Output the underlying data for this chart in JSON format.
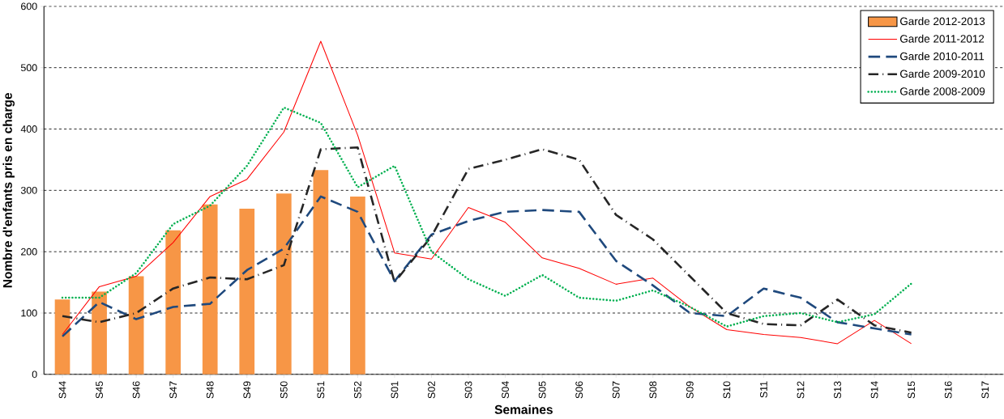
{
  "chart_data": {
    "type": "line",
    "xlabel": "Semaines",
    "ylabel": "Nombre d'enfants  pris en charge",
    "categories": [
      "S44",
      "S45",
      "S46",
      "S47",
      "S48",
      "S49",
      "S50",
      "S51",
      "S52",
      "S01",
      "S02",
      "S03",
      "S04",
      "S05",
      "S06",
      "S07",
      "S08",
      "S09",
      "S10",
      "S11",
      "S12",
      "S13",
      "S14",
      "S15",
      "S16",
      "S17"
    ],
    "series": [
      {
        "name": "Garde 2012-2013",
        "type": "bar",
        "color": "#f79646",
        "values": [
          122,
          135,
          160,
          235,
          277,
          270,
          295,
          333,
          290,
          null,
          null,
          null,
          null,
          null,
          null,
          null,
          null,
          null,
          null,
          null,
          null,
          null,
          null,
          null,
          null,
          null
        ]
      },
      {
        "name": "Garde 2011-2012",
        "color": "#ff0000",
        "line_style": "solid",
        "values": [
          65,
          143,
          160,
          215,
          290,
          318,
          395,
          543,
          390,
          198,
          188,
          272,
          248,
          190,
          173,
          147,
          157,
          110,
          73,
          65,
          60,
          50,
          88,
          50,
          null,
          null
        ]
      },
      {
        "name": "Garde 2010-2011",
        "color": "#1f497d",
        "line_style": "dashed",
        "values": [
          62,
          118,
          90,
          110,
          115,
          170,
          205,
          290,
          265,
          152,
          228,
          250,
          265,
          268,
          265,
          185,
          145,
          100,
          95,
          140,
          125,
          85,
          75,
          65,
          null,
          null
        ]
      },
      {
        "name": "Garde 2009-2010",
        "color": "#262626",
        "line_style": "dashdot",
        "values": [
          95,
          85,
          100,
          140,
          158,
          155,
          178,
          367,
          370,
          150,
          225,
          335,
          350,
          367,
          350,
          260,
          220,
          160,
          100,
          82,
          80,
          122,
          80,
          68,
          null,
          null
        ]
      },
      {
        "name": "Garde 2008-2009",
        "color": "#00b050",
        "line_style": "dotted",
        "values": [
          125,
          125,
          165,
          245,
          275,
          340,
          435,
          410,
          305,
          340,
          200,
          155,
          128,
          162,
          125,
          120,
          137,
          110,
          78,
          95,
          100,
          85,
          98,
          148,
          null,
          null
        ]
      }
    ],
    "ylim": [
      0,
      600
    ],
    "yticks": [
      0,
      100,
      200,
      300,
      400,
      500,
      600
    ],
    "grid": "y",
    "legend": "top right"
  }
}
